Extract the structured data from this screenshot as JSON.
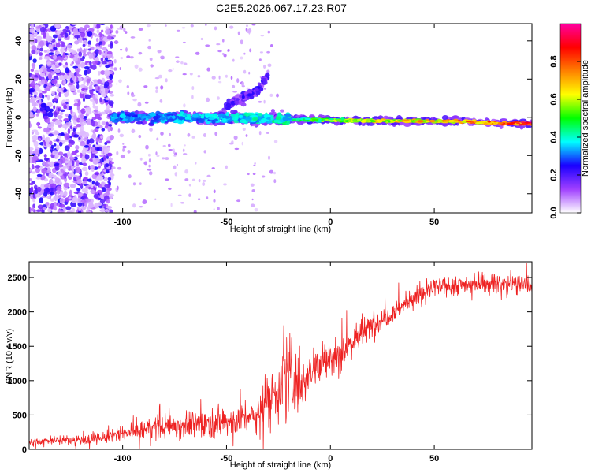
{
  "title": "C2E5.2026.067.17.23.R07",
  "chart_data": [
    {
      "type": "heatmap",
      "title": "C2E5.2026.067.17.23.R07",
      "xlabel": "Height of straight line (km)",
      "ylabel": "Frequency (Hz)",
      "xlim": [
        -145,
        97
      ],
      "ylim": [
        -50,
        49
      ],
      "xticks": [
        -100,
        -50,
        0,
        50
      ],
      "xtick_labels": [
        "-100",
        "-50",
        "0",
        "50"
      ],
      "yticks": [
        -40,
        -20,
        0,
        20,
        40
      ],
      "ytick_labels": [
        "-40",
        "-20",
        "0",
        "20",
        "40"
      ],
      "features": [
        {
          "name": "scattered-noise",
          "x_range": [
            -145,
            -105
          ],
          "freq_range": [
            -50,
            49
          ],
          "amplitude": 0.15
        },
        {
          "name": "main-carrier-band",
          "x_points": [
            -105,
            -60,
            -20,
            0,
            30,
            60,
            80,
            97
          ],
          "freq_points": [
            0,
            0,
            -1,
            -1.5,
            -2,
            -2,
            -3,
            -3.5
          ],
          "amplitude_points": [
            0.35,
            0.38,
            0.45,
            0.6,
            0.7,
            0.8,
            0.85,
            0.95
          ]
        },
        {
          "name": "upper-branch",
          "x_points": [
            -50,
            -42,
            -35,
            -30
          ],
          "freq_points": [
            6,
            10,
            14,
            22
          ],
          "amplitude": 0.15
        }
      ],
      "colorbar": {
        "label": "Normalized spectral amplitude",
        "range": [
          0,
          1
        ],
        "ticks": [
          0.0,
          0.2,
          0.4,
          0.6,
          0.8
        ],
        "tick_labels": [
          "0.0",
          "0.2",
          "0.4",
          "0.6",
          "0.8"
        ],
        "colors": [
          "#ffffff",
          "#a040ff",
          "#1a00ff",
          "#00ffff",
          "#00ff00",
          "#ffff00",
          "#ff8000",
          "#ff0000",
          "#ff00a0"
        ]
      }
    },
    {
      "type": "line",
      "xlabel": "Height of straight line (km)",
      "ylabel": "SNR (10 * v/v)",
      "xlim": [
        -145,
        97
      ],
      "ylim": [
        0,
        2730
      ],
      "xticks": [
        -100,
        -50,
        0,
        50
      ],
      "xtick_labels": [
        "-100",
        "-50",
        "0",
        "50"
      ],
      "yticks": [
        0,
        500,
        1000,
        1500,
        2000,
        2500
      ],
      "ytick_labels": [
        "0",
        "500",
        "1000",
        "1500",
        "2000",
        "2500"
      ],
      "color": "#ee2222",
      "envelope": {
        "x": [
          -145,
          -130,
          -110,
          -100,
          -80,
          -50,
          -35,
          -30,
          -20,
          -15,
          -10,
          0,
          10,
          20,
          30,
          40,
          50,
          70,
          97
        ],
        "y": [
          110,
          130,
          160,
          230,
          340,
          400,
          500,
          750,
          1050,
          950,
          1150,
          1300,
          1550,
          1800,
          2000,
          2200,
          2350,
          2420,
          2400
        ],
        "noise": [
          70,
          70,
          90,
          150,
          190,
          230,
          260,
          420,
          600,
          500,
          350,
          320,
          260,
          200,
          170,
          160,
          150,
          150,
          140
        ]
      }
    }
  ]
}
